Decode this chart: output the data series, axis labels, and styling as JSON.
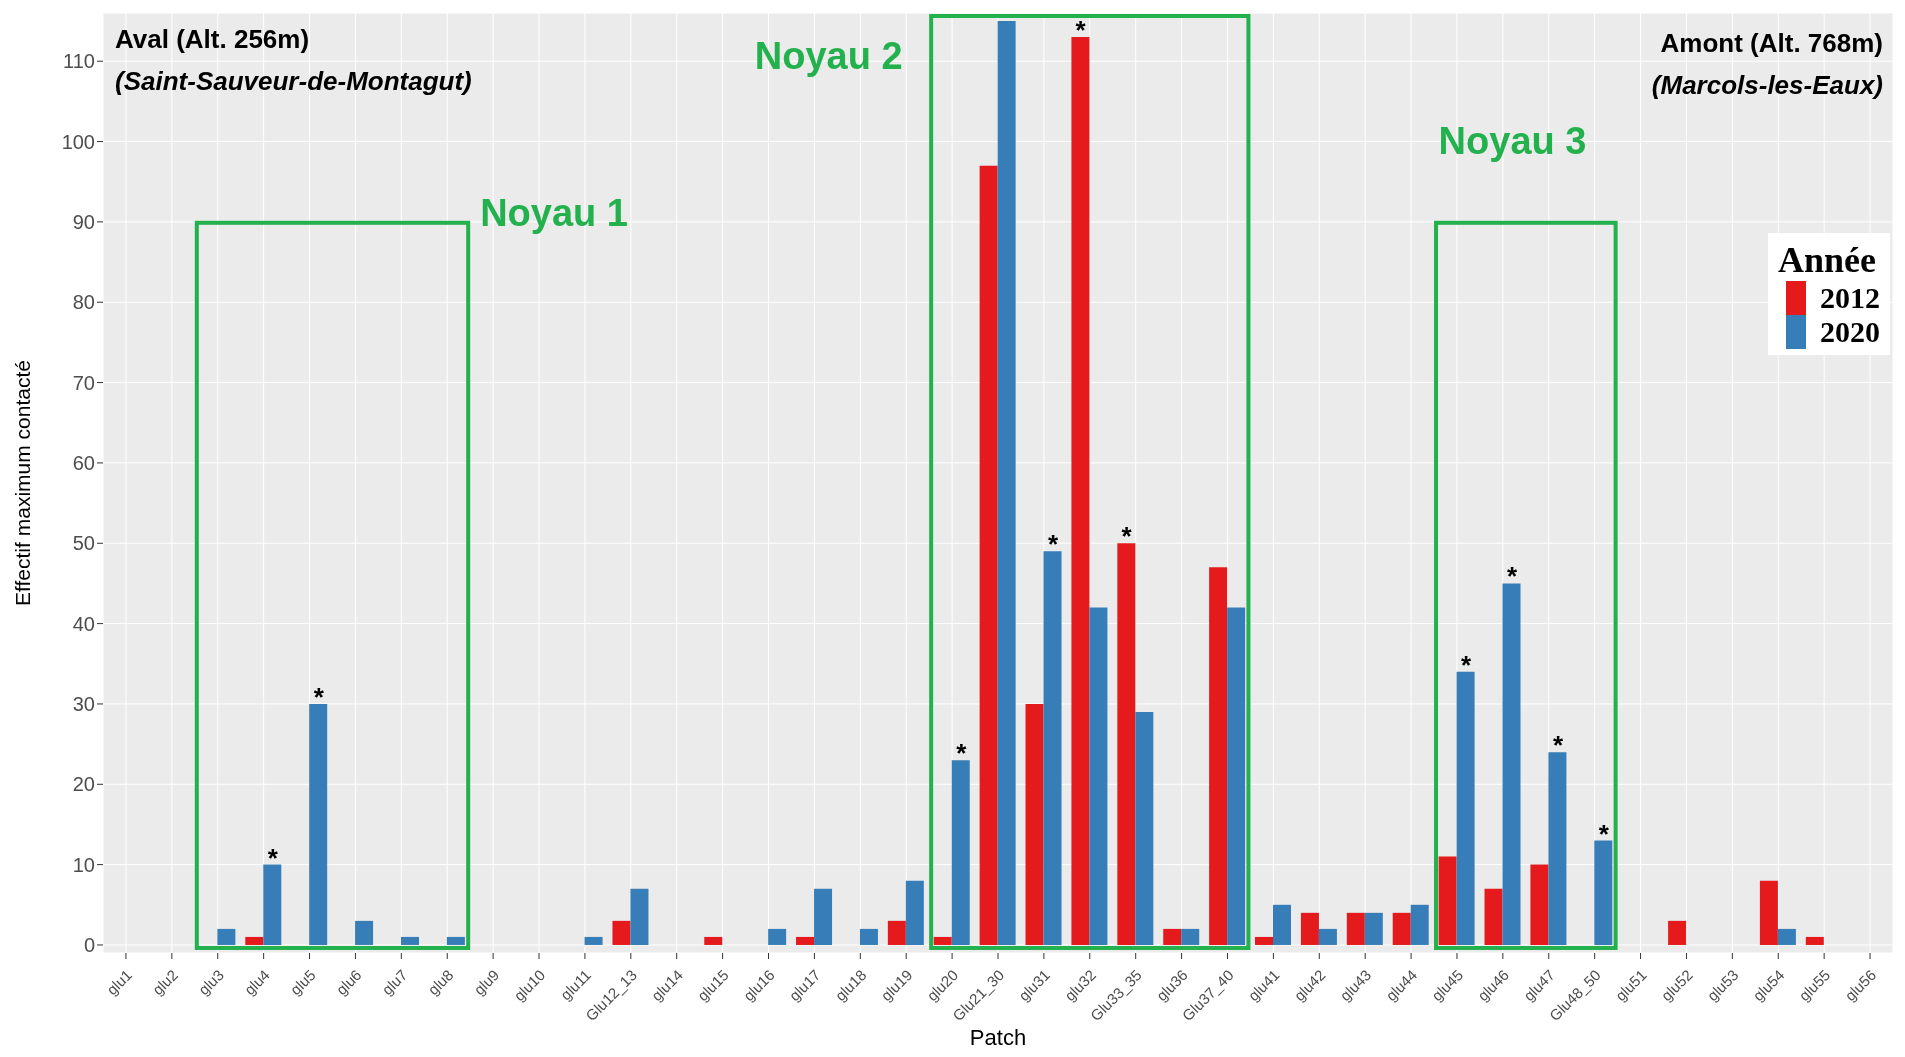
{
  "chart_data": {
    "type": "bar",
    "xlabel": "Patch",
    "ylabel": "Effectif maximum contacté",
    "legend_title": "Année",
    "categories": [
      "glu1",
      "glu2",
      "glu3",
      "glu4",
      "glu5",
      "glu6",
      "glu7",
      "glu8",
      "glu9",
      "glu10",
      "glu11",
      "Glu12_13",
      "glu14",
      "glu15",
      "glu16",
      "glu17",
      "glu18",
      "glu19",
      "glu20",
      "Glu21_30",
      "glu31",
      "glu32",
      "Glu33_35",
      "glu36",
      "Glu37_40",
      "glu41",
      "glu42",
      "glu43",
      "glu44",
      "glu45",
      "glu46",
      "glu47",
      "Glu48_50",
      "glu51",
      "glu52",
      "glu53",
      "glu54",
      "glu55",
      "glu56"
    ],
    "series": [
      {
        "name": "2012",
        "color": "#e41a1c",
        "values": [
          0,
          0,
          0,
          1,
          0,
          0,
          0,
          0,
          0,
          0,
          0,
          3,
          0,
          1,
          0,
          1,
          0,
          3,
          1,
          97,
          30,
          113,
          50,
          2,
          47,
          1,
          4,
          4,
          4,
          11,
          7,
          10,
          0,
          0,
          3,
          0,
          8,
          1,
          0
        ]
      },
      {
        "name": "2020",
        "color": "#377eb8",
        "values": [
          0,
          0,
          2,
          10,
          30,
          3,
          1,
          1,
          0,
          0,
          1,
          7,
          0,
          0,
          2,
          7,
          2,
          8,
          23,
          115,
          49,
          42,
          29,
          2,
          42,
          5,
          2,
          4,
          5,
          34,
          45,
          24,
          13,
          0,
          0,
          0,
          2,
          0,
          0
        ]
      }
    ],
    "ylim": [
      -1,
      116
    ],
    "yticks": [
      0,
      10,
      20,
      30,
      40,
      50,
      60,
      70,
      80,
      90,
      100,
      110
    ],
    "grid": true,
    "legend": "right",
    "annotations": [
      "Aval (Alt. 256m)",
      "(Saint-Sauveur-de-Montagut)",
      "Amont (Alt. 768m)",
      "(Marcols-les-Eaux)",
      "Noyau 1",
      "Noyau 2",
      "Noyau 3",
      {
        "text": "*",
        "x": "glu4",
        "y": 10
      },
      {
        "text": "*",
        "x": "glu5",
        "y": 30
      },
      {
        "text": "*",
        "x": "glu20",
        "y": 23
      },
      {
        "text": "*",
        "x": "glu31",
        "y": 49
      },
      {
        "text": "*",
        "x": "glu32",
        "y": 113
      },
      {
        "text": "*",
        "x": "Glu33_35",
        "y": 50
      },
      {
        "text": "*",
        "x": "glu45",
        "y": 34
      },
      {
        "text": "*",
        "x": "glu46",
        "y": 45
      },
      {
        "text": "*",
        "x": "glu47",
        "y": 24
      },
      {
        "text": "*",
        "x": "Glu48_50",
        "y": 13
      }
    ]
  }
}
